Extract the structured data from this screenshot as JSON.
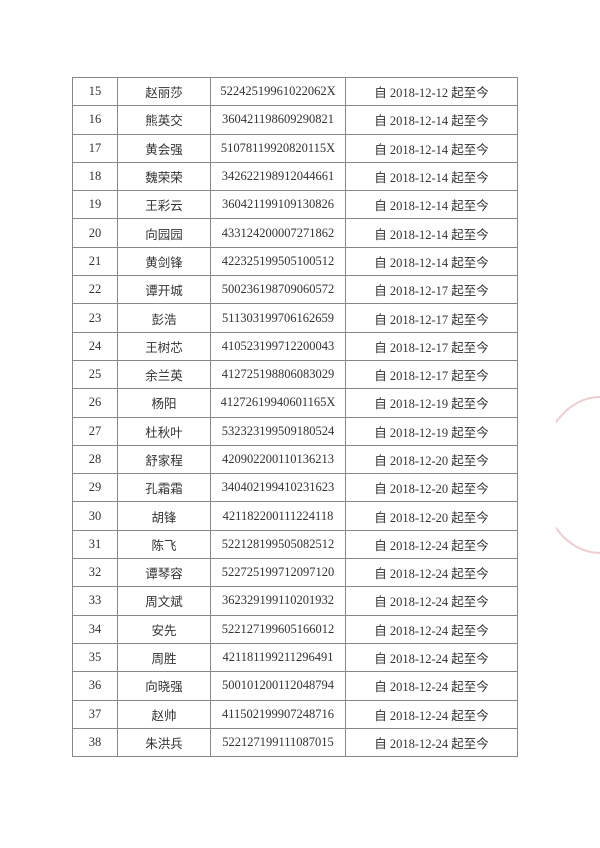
{
  "table": {
    "rows": [
      [
        "15",
        "赵丽莎",
        "52242519961022062X",
        "自 2018-12-12 起至今"
      ],
      [
        "16",
        "熊英交",
        "360421198609290821",
        "自 2018-12-14 起至今"
      ],
      [
        "17",
        "黄会强",
        "51078119920820115X",
        "自 2018-12-14 起至今"
      ],
      [
        "18",
        "魏荣荣",
        "342622198912044661",
        "自 2018-12-14 起至今"
      ],
      [
        "19",
        "王彩云",
        "360421199109130826",
        "自 2018-12-14 起至今"
      ],
      [
        "20",
        "向园园",
        "433124200007271862",
        "自 2018-12-14 起至今"
      ],
      [
        "21",
        "黄剑锋",
        "422325199505100512",
        "自 2018-12-14 起至今"
      ],
      [
        "22",
        "谭开城",
        "500236198709060572",
        "自 2018-12-17 起至今"
      ],
      [
        "23",
        "彭浩",
        "511303199706162659",
        "自 2018-12-17 起至今"
      ],
      [
        "24",
        "王树芯",
        "410523199712200043",
        "自 2018-12-17 起至今"
      ],
      [
        "25",
        "余兰英",
        "412725198806083029",
        "自 2018-12-17 起至今"
      ],
      [
        "26",
        "杨阳",
        "41272619940601165X",
        "自 2018-12-19 起至今"
      ],
      [
        "27",
        "杜秋叶",
        "532323199509180524",
        "自 2018-12-19 起至今"
      ],
      [
        "28",
        "舒家程",
        "420902200110136213",
        "自 2018-12-20 起至今"
      ],
      [
        "29",
        "孔霜霜",
        "340402199410231623",
        "自 2018-12-20 起至今"
      ],
      [
        "30",
        "胡锋",
        "421182200111224118",
        "自 2018-12-20 起至今"
      ],
      [
        "31",
        "陈飞",
        "522128199505082512",
        "自 2018-12-24 起至今"
      ],
      [
        "32",
        "谭琴容",
        "522725199712097120",
        "自 2018-12-24 起至今"
      ],
      [
        "33",
        "周文斌",
        "362329199110201932",
        "自 2018-12-24 起至今"
      ],
      [
        "34",
        "安先",
        "522127199605166012",
        "自 2018-12-24 起至今"
      ],
      [
        "35",
        "周胜",
        "421181199211296491",
        "自 2018-12-24 起至今"
      ],
      [
        "36",
        "向晓强",
        "500101200112048794",
        "自 2018-12-24 起至今"
      ],
      [
        "37",
        "赵帅",
        "411502199907248716",
        "自 2018-12-24 起至今"
      ],
      [
        "38",
        "朱洪兵",
        "522127199111087015",
        "自 2018-12-24 起至今"
      ]
    ]
  },
  "colors": {
    "stamp": "#c85a64",
    "border": "#888888"
  }
}
